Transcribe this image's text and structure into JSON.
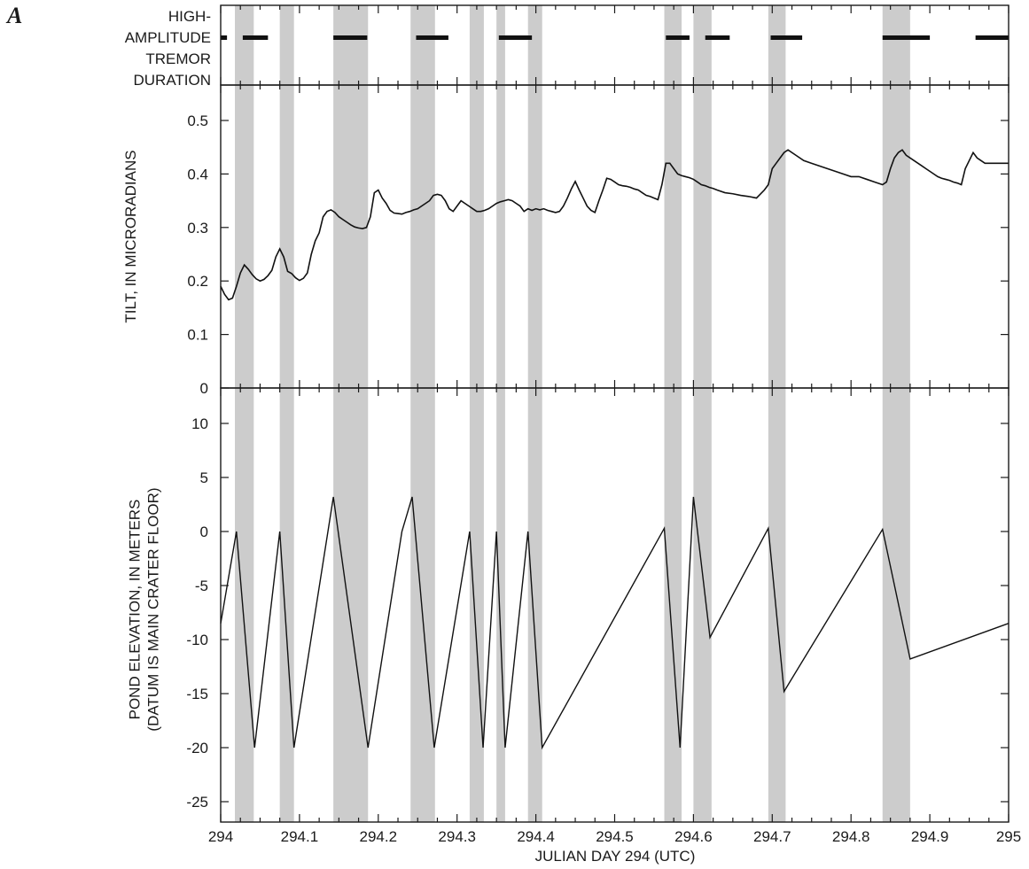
{
  "figure": {
    "panel_letter": "A",
    "xlabel": "JULIAN DAY 294 (UTC)",
    "shade_color": "#cccccc",
    "line_color": "#111111"
  },
  "chart_data": {
    "type": "line",
    "x_range": [
      294,
      295
    ],
    "x_ticks": [
      "294",
      "294.1",
      "294.2",
      "294.3",
      "294.4",
      "294.5",
      "294.6",
      "294.7",
      "294.8",
      "294.9",
      "295"
    ],
    "x_tick_values": [
      294,
      294.1,
      294.2,
      294.3,
      294.4,
      294.5,
      294.6,
      294.7,
      294.8,
      294.9,
      295
    ],
    "shaded_intervals": [
      [
        294.018,
        294.042
      ],
      [
        294.075,
        294.093
      ],
      [
        294.143,
        294.187
      ],
      [
        294.241,
        294.272
      ],
      [
        294.316,
        294.334
      ],
      [
        294.35,
        294.361
      ],
      [
        294.39,
        294.408
      ],
      [
        294.563,
        294.585
      ],
      [
        294.6,
        294.623
      ],
      [
        294.695,
        294.717
      ],
      [
        294.84,
        294.875
      ]
    ],
    "panels": [
      {
        "id": "tremor",
        "ylabel": [
          "HIGH-",
          "AMPLITUDE",
          "TREMOR",
          "DURATION"
        ],
        "type": "interval",
        "intervals": [
          [
            294.0,
            294.008
          ],
          [
            294.028,
            294.06
          ],
          [
            294.143,
            294.186
          ],
          [
            294.248,
            294.289
          ],
          [
            294.353,
            294.395
          ],
          [
            294.565,
            294.595
          ],
          [
            294.615,
            294.646
          ],
          [
            294.698,
            294.738
          ],
          [
            294.84,
            294.9
          ],
          [
            294.958,
            295.0
          ]
        ]
      },
      {
        "id": "tilt",
        "ylabel": [
          "TILT, IN MICRORADIANS"
        ],
        "ylim": [
          0,
          0.55
        ],
        "y_ticks": [
          "0",
          "0.1",
          "0.2",
          "0.3",
          "0.4",
          "0.5"
        ],
        "y_tick_values": [
          0,
          0.1,
          0.2,
          0.3,
          0.4,
          0.5
        ],
        "series": [
          {
            "x": [
              294.0,
              294.005,
              294.01,
              294.015,
              294.02,
              294.025,
              294.03,
              294.035,
              294.04,
              294.045,
              294.05,
              294.055,
              294.06,
              294.065,
              294.07,
              294.075,
              294.08,
              294.085,
              294.09,
              294.095,
              294.1,
              294.105,
              294.11,
              294.115,
              294.12,
              294.125,
              294.13,
              294.135,
              294.14,
              294.145,
              294.15,
              294.155,
              294.16,
              294.165,
              294.17,
              294.175,
              294.18,
              294.185,
              294.19,
              294.195,
              294.2,
              294.205,
              294.21,
              294.215,
              294.22,
              294.225,
              294.23,
              294.235,
              294.24,
              294.245,
              294.25,
              294.255,
              294.26,
              294.265,
              294.27,
              294.275,
              294.28,
              294.285,
              294.29,
              294.295,
              294.3,
              294.305,
              294.31,
              294.315,
              294.32,
              294.325,
              294.33,
              294.335,
              294.34,
              294.345,
              294.35,
              294.355,
              294.36,
              294.365,
              294.37,
              294.375,
              294.38,
              294.385,
              294.39,
              294.395,
              294.4,
              294.405,
              294.41,
              294.415,
              294.42,
              294.425,
              294.43,
              294.435,
              294.44,
              294.445,
              294.45,
              294.455,
              294.46,
              294.465,
              294.47,
              294.475,
              294.48,
              294.485,
              294.49,
              294.495,
              294.5,
              294.505,
              294.51,
              294.515,
              294.52,
              294.525,
              294.53,
              294.535,
              294.54,
              294.545,
              294.55,
              294.555,
              294.56,
              294.565,
              294.57,
              294.575,
              294.58,
              294.585,
              294.59,
              294.595,
              294.6,
              294.605,
              294.61,
              294.615,
              294.62,
              294.625,
              294.63,
              294.64,
              294.65,
              294.66,
              294.67,
              294.68,
              294.69,
              294.695,
              294.7,
              294.705,
              294.71,
              294.715,
              294.72,
              294.73,
              294.74,
              294.75,
              294.76,
              294.77,
              294.78,
              294.79,
              294.8,
              294.81,
              294.82,
              294.83,
              294.84,
              294.845,
              294.85,
              294.855,
              294.86,
              294.865,
              294.87,
              294.875,
              294.88,
              294.885,
              294.89,
              294.895,
              294.9,
              294.905,
              294.91,
              294.915,
              294.92,
              294.925,
              294.93,
              294.935,
              294.94,
              294.945,
              294.95,
              294.955,
              294.96,
              294.965,
              294.97,
              294.975,
              294.98,
              294.985,
              294.99,
              294.995,
              295.0
            ],
            "y": [
              0.19,
              0.175,
              0.165,
              0.168,
              0.19,
              0.215,
              0.23,
              0.222,
              0.212,
              0.204,
              0.2,
              0.203,
              0.21,
              0.22,
              0.245,
              0.26,
              0.245,
              0.218,
              0.214,
              0.206,
              0.201,
              0.205,
              0.215,
              0.25,
              0.275,
              0.29,
              0.32,
              0.33,
              0.333,
              0.328,
              0.32,
              0.315,
              0.31,
              0.305,
              0.301,
              0.299,
              0.298,
              0.3,
              0.32,
              0.365,
              0.37,
              0.355,
              0.345,
              0.332,
              0.327,
              0.326,
              0.325,
              0.328,
              0.33,
              0.333,
              0.335,
              0.34,
              0.345,
              0.35,
              0.36,
              0.362,
              0.36,
              0.35,
              0.335,
              0.33,
              0.34,
              0.35,
              0.345,
              0.34,
              0.335,
              0.33,
              0.33,
              0.332,
              0.335,
              0.34,
              0.345,
              0.348,
              0.35,
              0.352,
              0.35,
              0.345,
              0.34,
              0.33,
              0.335,
              0.332,
              0.335,
              0.333,
              0.335,
              0.332,
              0.33,
              0.328,
              0.33,
              0.34,
              0.355,
              0.372,
              0.386,
              0.37,
              0.355,
              0.34,
              0.332,
              0.328,
              0.35,
              0.37,
              0.392,
              0.39,
              0.385,
              0.38,
              0.378,
              0.377,
              0.375,
              0.372,
              0.37,
              0.365,
              0.36,
              0.358,
              0.355,
              0.352,
              0.38,
              0.42,
              0.42,
              0.41,
              0.4,
              0.397,
              0.395,
              0.393,
              0.39,
              0.385,
              0.38,
              0.378,
              0.375,
              0.373,
              0.37,
              0.365,
              0.363,
              0.36,
              0.358,
              0.355,
              0.37,
              0.38,
              0.41,
              0.42,
              0.43,
              0.44,
              0.445,
              0.435,
              0.425,
              0.42,
              0.415,
              0.41,
              0.405,
              0.4,
              0.395,
              0.395,
              0.39,
              0.385,
              0.38,
              0.385,
              0.41,
              0.43,
              0.44,
              0.445,
              0.435,
              0.43,
              0.425,
              0.42,
              0.415,
              0.41,
              0.405,
              0.4,
              0.395,
              0.392,
              0.39,
              0.388,
              0.385,
              0.383,
              0.38,
              0.41,
              0.425,
              0.44,
              0.43,
              0.425,
              0.42,
              0.42,
              0.42,
              0.42,
              0.42,
              0.42,
              0.42
            ]
          }
        ]
      },
      {
        "id": "pond",
        "ylabel": [
          "POND ELEVATION, IN METERS",
          "(DATUM IS MAIN CRATER FLOOR)"
        ],
        "ylim": [
          -26,
          13
        ],
        "y_ticks": [
          "10",
          "5",
          "0",
          "-5",
          "-10",
          "-15",
          "-20",
          "-25"
        ],
        "y_tick_values": [
          10,
          5,
          0,
          -5,
          -10,
          -15,
          -20,
          -25
        ],
        "series": [
          {
            "x": [
              294.0,
              294.02,
              294.043,
              294.075,
              294.093,
              294.143,
              294.187,
              294.23,
              294.243,
              294.271,
              294.316,
              294.333,
              294.35,
              294.361,
              294.39,
              294.408,
              294.563,
              294.583,
              294.6,
              294.621,
              294.695,
              294.715,
              294.84,
              294.875,
              295.0
            ],
            "y": [
              -8.5,
              0.0,
              -20.0,
              0.0,
              -20.0,
              3.2,
              -20.0,
              0.0,
              3.2,
              -20.0,
              0.0,
              -20.0,
              0.0,
              -20.0,
              0.0,
              -20.0,
              0.3,
              -20.0,
              3.2,
              -9.8,
              0.3,
              -14.8,
              0.2,
              -11.8,
              -8.5
            ]
          }
        ]
      }
    ]
  }
}
